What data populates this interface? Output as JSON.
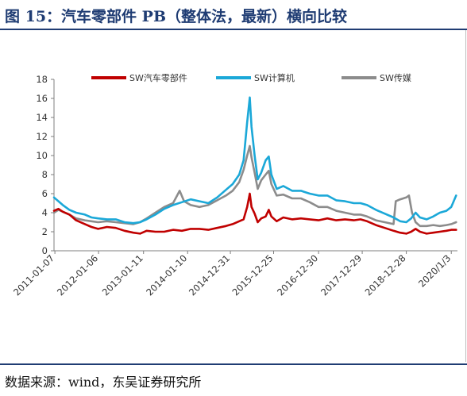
{
  "header": {
    "title": "图 15：汽车零部件 PB（整体法，最新）横向比较"
  },
  "footer": {
    "source": "数据来源：wind，东吴证券研究所"
  },
  "chart_data": {
    "type": "line",
    "ylim": [
      0,
      18
    ],
    "yticks": [
      0,
      2,
      4,
      6,
      8,
      10,
      12,
      14,
      16,
      18
    ],
    "x_tick_labels": [
      "2011-01-07",
      "2012-01-06",
      "2013-01-11",
      "2014-01-10",
      "2014-12-31",
      "2015-12-25",
      "2016-12-30",
      "2017-12-29",
      "2018-12-28",
      "2020/1/3"
    ],
    "x_tick_positions": [
      2011.02,
      2012.01,
      2013.03,
      2014.03,
      2015.0,
      2015.98,
      2017.0,
      2017.99,
      2018.99,
      2020.01
    ],
    "xlim": [
      2011.0,
      2020.15
    ],
    "grid": false,
    "legend": "top",
    "series": [
      {
        "name": "SW汽车零部件",
        "color": "#c00000",
        "points": [
          [
            2011.0,
            4.2
          ],
          [
            2011.1,
            4.4
          ],
          [
            2011.2,
            4.1
          ],
          [
            2011.35,
            3.8
          ],
          [
            2011.5,
            3.2
          ],
          [
            2011.7,
            2.8
          ],
          [
            2011.85,
            2.5
          ],
          [
            2012.0,
            2.3
          ],
          [
            2012.2,
            2.5
          ],
          [
            2012.4,
            2.4
          ],
          [
            2012.6,
            2.1
          ],
          [
            2012.8,
            1.9
          ],
          [
            2012.95,
            1.8
          ],
          [
            2013.1,
            2.1
          ],
          [
            2013.3,
            2.0
          ],
          [
            2013.5,
            2.0
          ],
          [
            2013.7,
            2.2
          ],
          [
            2013.9,
            2.1
          ],
          [
            2014.1,
            2.3
          ],
          [
            2014.3,
            2.3
          ],
          [
            2014.5,
            2.2
          ],
          [
            2014.7,
            2.4
          ],
          [
            2014.9,
            2.6
          ],
          [
            2015.05,
            2.8
          ],
          [
            2015.2,
            3.1
          ],
          [
            2015.3,
            3.3
          ],
          [
            2015.38,
            4.6
          ],
          [
            2015.44,
            6.0
          ],
          [
            2015.48,
            4.6
          ],
          [
            2015.55,
            3.9
          ],
          [
            2015.62,
            3.0
          ],
          [
            2015.7,
            3.4
          ],
          [
            2015.8,
            3.6
          ],
          [
            2015.87,
            4.3
          ],
          [
            2015.93,
            3.6
          ],
          [
            2016.05,
            3.1
          ],
          [
            2016.2,
            3.5
          ],
          [
            2016.4,
            3.3
          ],
          [
            2016.6,
            3.4
          ],
          [
            2016.8,
            3.3
          ],
          [
            2017.0,
            3.2
          ],
          [
            2017.2,
            3.4
          ],
          [
            2017.4,
            3.2
          ],
          [
            2017.6,
            3.3
          ],
          [
            2017.8,
            3.2
          ],
          [
            2017.95,
            3.3
          ],
          [
            2018.1,
            3.1
          ],
          [
            2018.3,
            2.7
          ],
          [
            2018.5,
            2.4
          ],
          [
            2018.7,
            2.1
          ],
          [
            2018.85,
            1.9
          ],
          [
            2018.99,
            1.8
          ],
          [
            2019.1,
            2.0
          ],
          [
            2019.2,
            2.3
          ],
          [
            2019.3,
            2.0
          ],
          [
            2019.45,
            1.8
          ],
          [
            2019.6,
            1.9
          ],
          [
            2019.75,
            2.0
          ],
          [
            2019.9,
            2.1
          ],
          [
            2020.01,
            2.2
          ],
          [
            2020.12,
            2.2
          ]
        ]
      },
      {
        "name": "SW计算机",
        "color": "#1ba8d8",
        "points": [
          [
            2011.0,
            5.6
          ],
          [
            2011.1,
            5.2
          ],
          [
            2011.2,
            4.8
          ],
          [
            2011.35,
            4.3
          ],
          [
            2011.5,
            4.0
          ],
          [
            2011.7,
            3.8
          ],
          [
            2011.85,
            3.5
          ],
          [
            2012.0,
            3.4
          ],
          [
            2012.2,
            3.3
          ],
          [
            2012.4,
            3.3
          ],
          [
            2012.6,
            3.0
          ],
          [
            2012.8,
            2.9
          ],
          [
            2012.95,
            3.0
          ],
          [
            2013.1,
            3.3
          ],
          [
            2013.3,
            3.8
          ],
          [
            2013.5,
            4.4
          ],
          [
            2013.7,
            4.8
          ],
          [
            2013.9,
            5.1
          ],
          [
            2014.1,
            5.4
          ],
          [
            2014.3,
            5.2
          ],
          [
            2014.5,
            5.0
          ],
          [
            2014.7,
            5.6
          ],
          [
            2014.9,
            6.4
          ],
          [
            2015.05,
            7.0
          ],
          [
            2015.2,
            8.0
          ],
          [
            2015.3,
            9.5
          ],
          [
            2015.38,
            13.5
          ],
          [
            2015.44,
            16.1
          ],
          [
            2015.48,
            13.0
          ],
          [
            2015.55,
            10.0
          ],
          [
            2015.62,
            7.5
          ],
          [
            2015.7,
            8.2
          ],
          [
            2015.8,
            9.5
          ],
          [
            2015.87,
            9.9
          ],
          [
            2015.93,
            8.0
          ],
          [
            2016.05,
            6.5
          ],
          [
            2016.2,
            6.8
          ],
          [
            2016.4,
            6.3
          ],
          [
            2016.6,
            6.3
          ],
          [
            2016.8,
            6.0
          ],
          [
            2017.0,
            5.8
          ],
          [
            2017.2,
            5.8
          ],
          [
            2017.4,
            5.3
          ],
          [
            2017.6,
            5.2
          ],
          [
            2017.8,
            5.0
          ],
          [
            2017.95,
            5.0
          ],
          [
            2018.1,
            4.8
          ],
          [
            2018.3,
            4.3
          ],
          [
            2018.5,
            3.9
          ],
          [
            2018.7,
            3.5
          ],
          [
            2018.85,
            3.1
          ],
          [
            2018.99,
            3.0
          ],
          [
            2019.1,
            3.4
          ],
          [
            2019.2,
            4.0
          ],
          [
            2019.3,
            3.5
          ],
          [
            2019.45,
            3.3
          ],
          [
            2019.6,
            3.6
          ],
          [
            2019.75,
            4.0
          ],
          [
            2019.9,
            4.2
          ],
          [
            2020.01,
            4.6
          ],
          [
            2020.12,
            5.8
          ]
        ]
      },
      {
        "name": "SW传媒",
        "color": "#8c8c8c",
        "points": [
          [
            2011.0,
            4.0
          ],
          [
            2011.1,
            4.3
          ],
          [
            2011.2,
            4.1
          ],
          [
            2011.35,
            3.8
          ],
          [
            2011.5,
            3.4
          ],
          [
            2011.7,
            3.2
          ],
          [
            2011.85,
            3.1
          ],
          [
            2012.0,
            3.0
          ],
          [
            2012.2,
            3.1
          ],
          [
            2012.4,
            3.0
          ],
          [
            2012.6,
            2.9
          ],
          [
            2012.8,
            2.8
          ],
          [
            2012.95,
            3.0
          ],
          [
            2013.1,
            3.4
          ],
          [
            2013.3,
            4.0
          ],
          [
            2013.5,
            4.6
          ],
          [
            2013.7,
            5.0
          ],
          [
            2013.85,
            6.3
          ],
          [
            2013.95,
            5.2
          ],
          [
            2014.1,
            4.8
          ],
          [
            2014.3,
            4.6
          ],
          [
            2014.5,
            4.8
          ],
          [
            2014.7,
            5.3
          ],
          [
            2014.9,
            5.8
          ],
          [
            2015.05,
            6.3
          ],
          [
            2015.2,
            7.2
          ],
          [
            2015.3,
            8.5
          ],
          [
            2015.38,
            10.0
          ],
          [
            2015.44,
            11.0
          ],
          [
            2015.48,
            9.8
          ],
          [
            2015.55,
            8.2
          ],
          [
            2015.62,
            6.5
          ],
          [
            2015.7,
            7.4
          ],
          [
            2015.8,
            8.0
          ],
          [
            2015.87,
            8.4
          ],
          [
            2015.93,
            7.0
          ],
          [
            2016.05,
            5.8
          ],
          [
            2016.2,
            5.9
          ],
          [
            2016.4,
            5.5
          ],
          [
            2016.6,
            5.5
          ],
          [
            2016.8,
            5.1
          ],
          [
            2017.0,
            4.6
          ],
          [
            2017.2,
            4.6
          ],
          [
            2017.4,
            4.2
          ],
          [
            2017.6,
            4.0
          ],
          [
            2017.8,
            3.8
          ],
          [
            2017.95,
            3.8
          ],
          [
            2018.1,
            3.6
          ],
          [
            2018.3,
            3.2
          ],
          [
            2018.5,
            3.0
          ],
          [
            2018.7,
            2.8
          ],
          [
            2018.75,
            5.2
          ],
          [
            2018.85,
            5.4
          ],
          [
            2018.99,
            5.6
          ],
          [
            2019.05,
            5.8
          ],
          [
            2019.12,
            4.0
          ],
          [
            2019.2,
            3.0
          ],
          [
            2019.3,
            2.6
          ],
          [
            2019.45,
            2.6
          ],
          [
            2019.6,
            2.7
          ],
          [
            2019.75,
            2.6
          ],
          [
            2019.9,
            2.7
          ],
          [
            2020.01,
            2.8
          ],
          [
            2020.12,
            3.0
          ]
        ]
      }
    ]
  }
}
